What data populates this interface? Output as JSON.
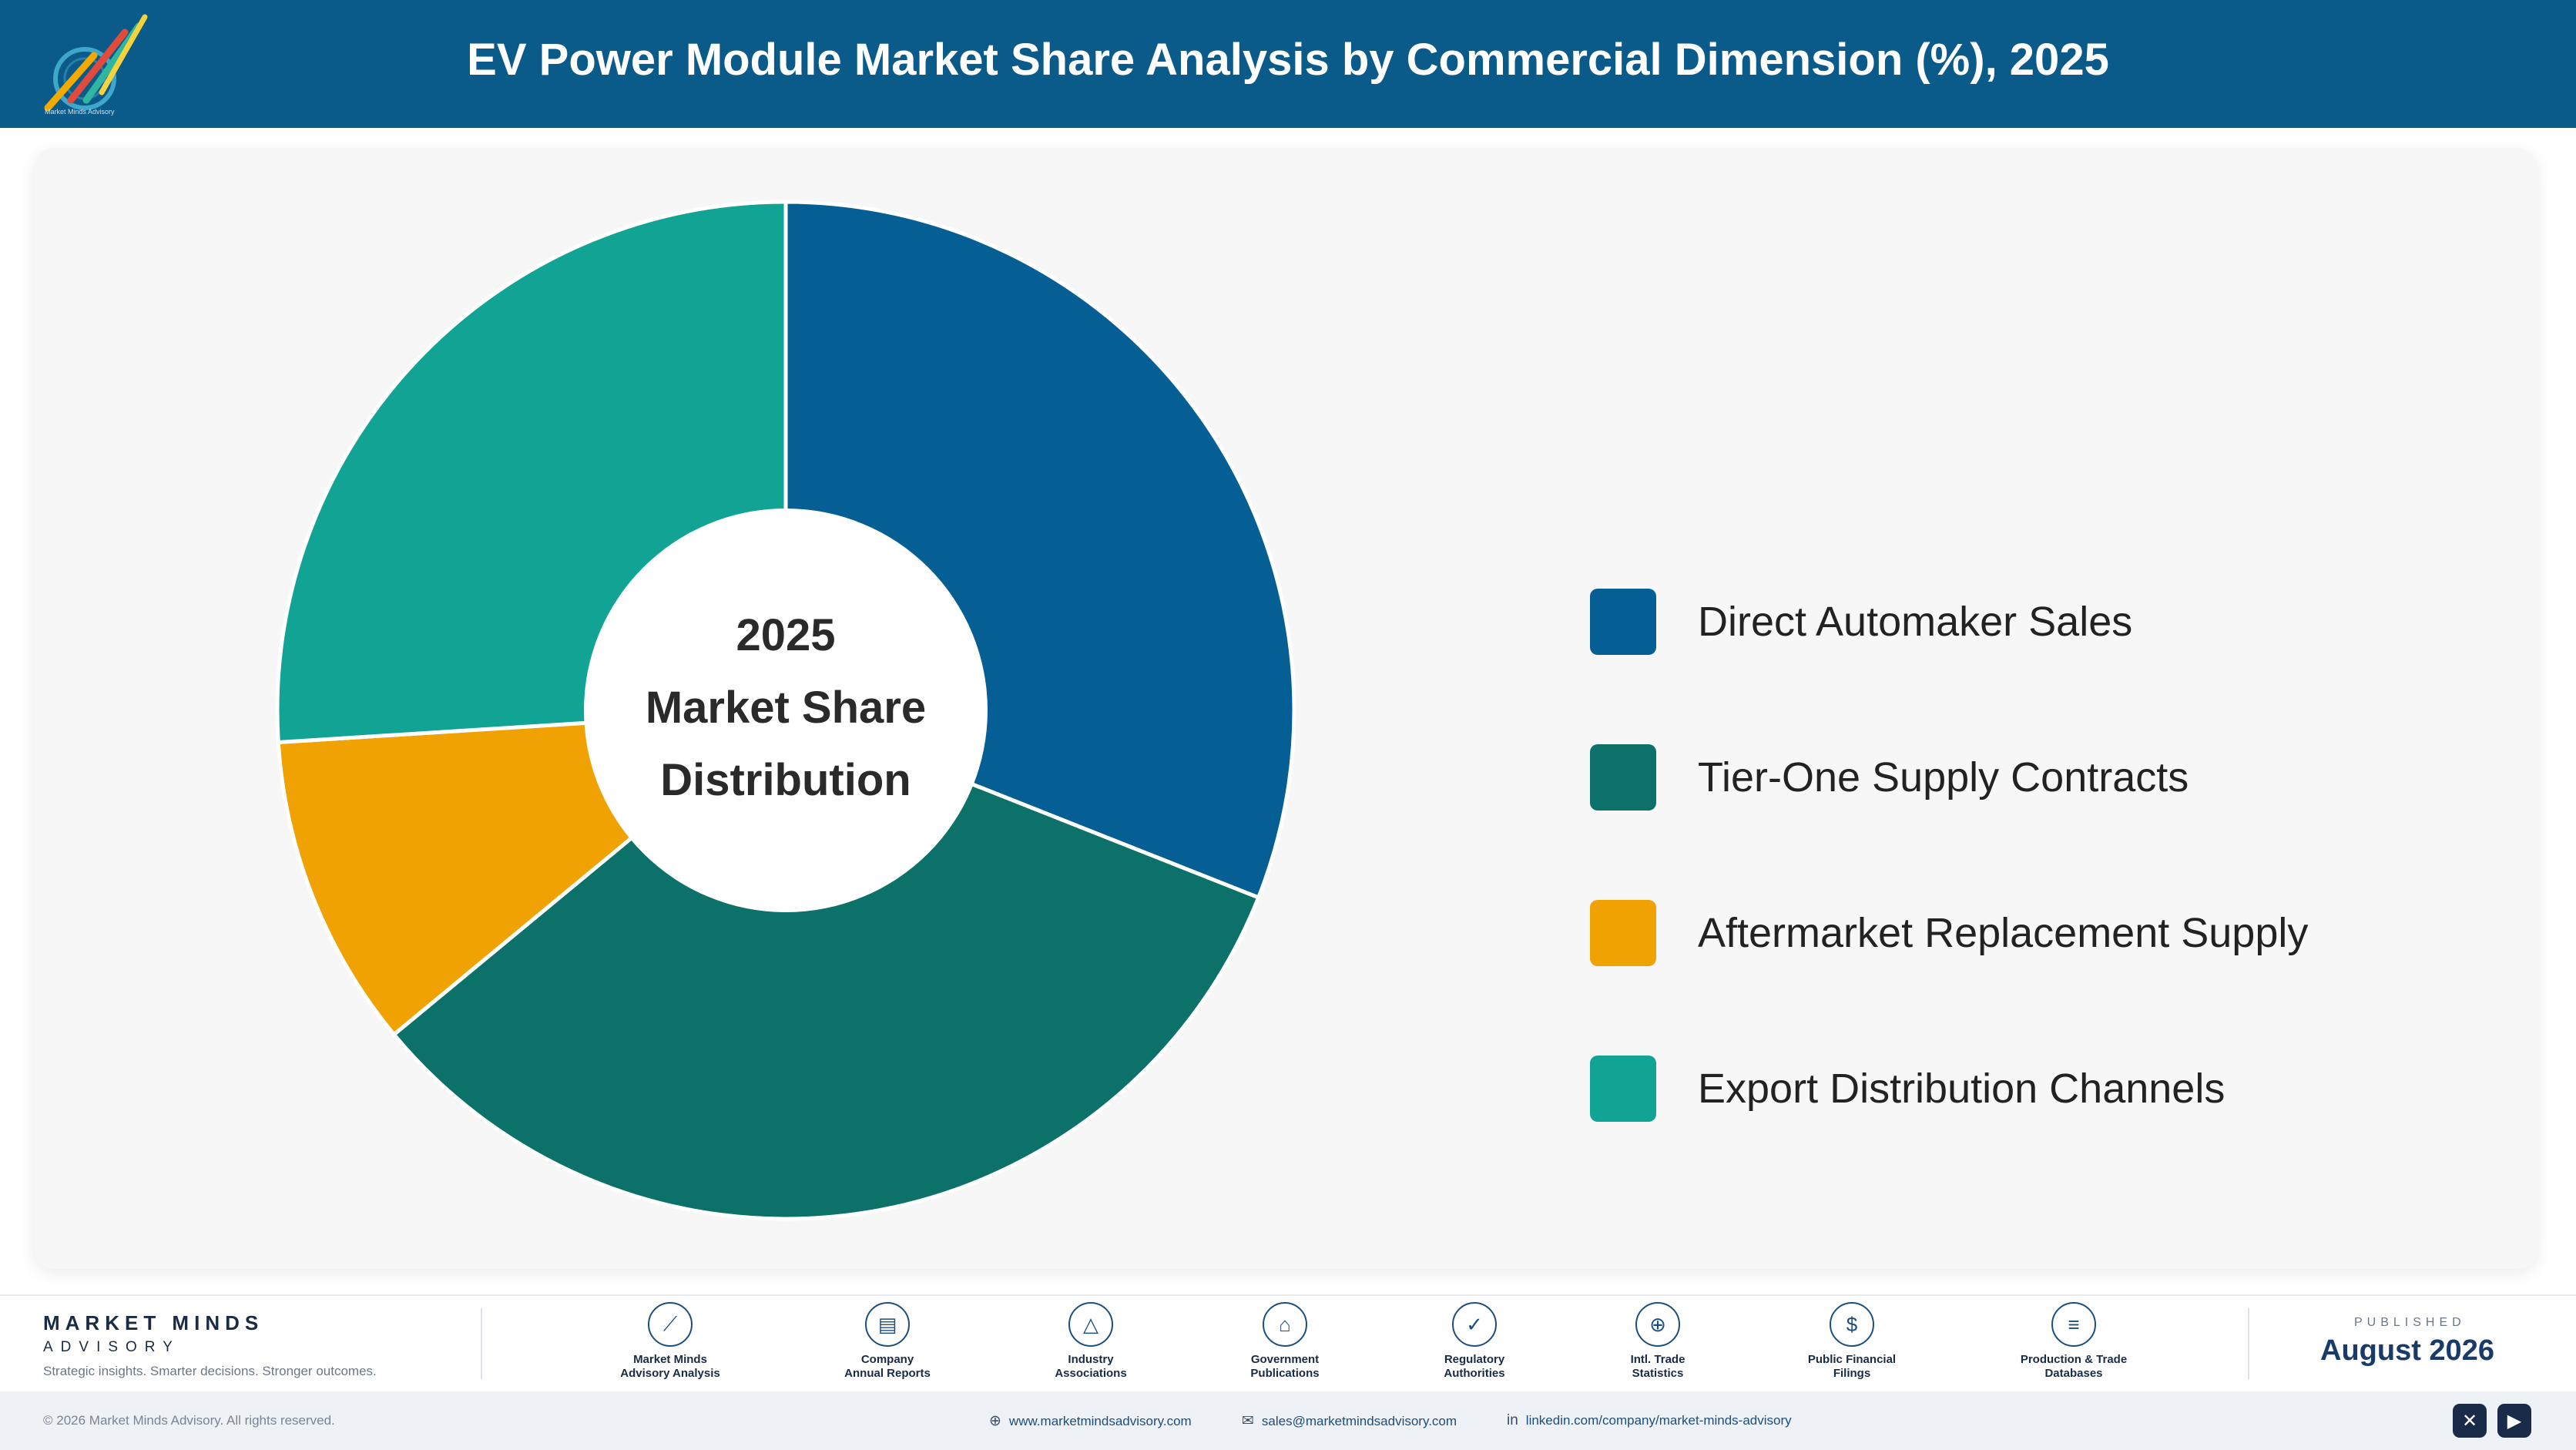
{
  "header": {
    "title": "EV Power Module Market Share Analysis by Commercial Dimension (%), 2025",
    "logo_icon": "brand-logo-icon",
    "logo_text": "Market Minds Advisory"
  },
  "chart_data": {
    "type": "pie",
    "style": "donut",
    "title": "EV Power Module Market Share Analysis by Commercial Dimension (%), 2025",
    "center_label": [
      "2025",
      "Market Share",
      "Distribution"
    ],
    "categories": [
      "Direct Automaker Sales",
      "Tier-One Supply Contracts",
      "Aftermarket Replacement Supply",
      "Export Distribution Channels"
    ],
    "values": [
      31,
      33,
      10,
      26
    ],
    "colors": [
      "#065f94",
      "#0b7169",
      "#efa201",
      "#11a394"
    ],
    "legend_position": "right"
  },
  "footer": {
    "brand_name": "MARKET MINDS",
    "brand_sub": "ADVISORY",
    "brand_tagline": "Strategic insights. Smarter decisions. Stronger outcomes.",
    "sources": [
      {
        "label": "Market Minds\nAdvisory Analysis",
        "icon": "trend-chart-icon",
        "glyph": "⟋"
      },
      {
        "label": "Company\nAnnual Reports",
        "icon": "document-icon",
        "glyph": "▤"
      },
      {
        "label": "Industry\nAssociations",
        "icon": "network-icon",
        "glyph": "△"
      },
      {
        "label": "Government\nPublications",
        "icon": "government-building-icon",
        "glyph": "⌂"
      },
      {
        "label": "Regulatory\nAuthorities",
        "icon": "shield-check-icon",
        "glyph": "✓"
      },
      {
        "label": "Intl. Trade\nStatistics",
        "icon": "globe-icon",
        "glyph": "⊕"
      },
      {
        "label": "Public Financial\nFilings",
        "icon": "dollar-coin-icon",
        "glyph": "$"
      },
      {
        "label": "Production & Trade\nDatabases",
        "icon": "database-icon",
        "glyph": "≡"
      }
    ],
    "published_label": "PUBLISHED",
    "published_date": "August 2026"
  },
  "bottom_bar": {
    "copyright": "© 2026 Market Minds Advisory. All rights reserved.",
    "website": "www.marketmindsadvisory.com",
    "email": "sales@marketmindsadvisory.com",
    "linkedin": "linkedin.com/company/market-minds-advisory",
    "social_icons": [
      "x-icon",
      "youtube-icon"
    ]
  }
}
